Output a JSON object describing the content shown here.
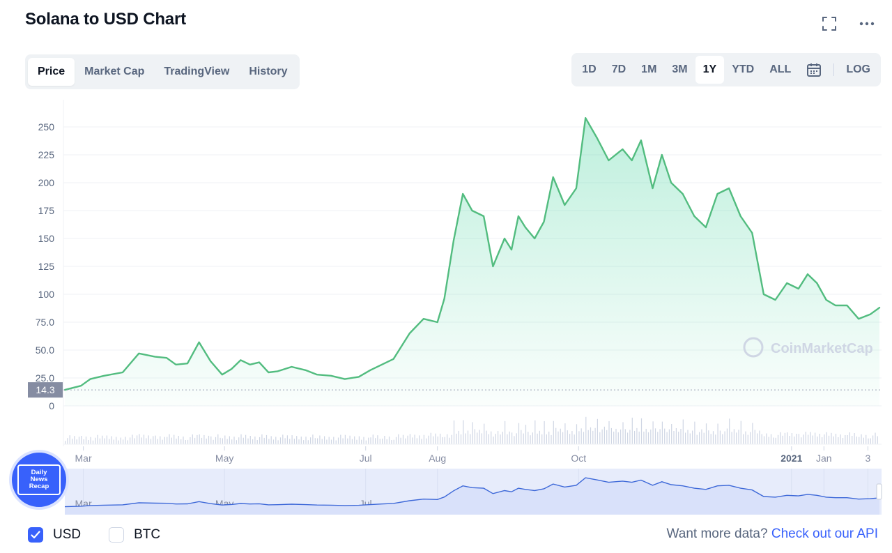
{
  "header": {
    "title": "Solana to USD Chart"
  },
  "tabs": [
    {
      "label": "Price",
      "active": true
    },
    {
      "label": "Market Cap",
      "active": false
    },
    {
      "label": "TradingView",
      "active": false
    },
    {
      "label": "History",
      "active": false
    }
  ],
  "ranges": {
    "buttons": [
      "1D",
      "7D",
      "1M",
      "3M",
      "1Y",
      "YTD",
      "ALL"
    ],
    "active": "1Y",
    "log_label": "LOG"
  },
  "colors": {
    "line": "#52bc7f",
    "fill": "#16c784",
    "volume": "#cfd6e4",
    "nav_line": "#3d68d8",
    "nav_fill": "#e7ecfb",
    "accent": "#3861fb",
    "price_tag": "#858ca2"
  },
  "watermark": "CoinMarketCap",
  "badge": {
    "lines": [
      "Daily",
      "News",
      "Recap"
    ]
  },
  "footer": {
    "currencies": [
      {
        "label": "USD",
        "checked": true
      },
      {
        "label": "BTC",
        "checked": false
      }
    ],
    "api_prefix": "Want more data? ",
    "api_link": "Check out our API"
  },
  "chart_data": {
    "type": "area",
    "title": "Solana to USD Chart",
    "ylabel": "",
    "xlabel": "",
    "ylim": [
      0,
      265
    ],
    "y_ticks": [
      0,
      25.0,
      50.0,
      75.0,
      100,
      125,
      150,
      175,
      200,
      225,
      250
    ],
    "y_tick_labels": [
      "0",
      "25.0",
      "50.0",
      "75.0",
      "100",
      "125",
      "150",
      "175",
      "200",
      "225",
      "250"
    ],
    "x_tick_labels": [
      {
        "label": "Mar",
        "date": "2021-03-01"
      },
      {
        "label": "May",
        "date": "2021-05-01"
      },
      {
        "label": "Jul",
        "date": "2021-07-01"
      },
      {
        "label": "Aug",
        "date": "2021-08-01"
      },
      {
        "label": "Oct",
        "date": "2021-10-01"
      },
      {
        "label": "2021",
        "date": "2022-01-01",
        "bold": true
      },
      {
        "label": "Jan",
        "date": "2022-01-15"
      },
      {
        "label": "3",
        "date": "2022-02-03"
      }
    ],
    "current_price_label": "14.3",
    "current_price": 14.3,
    "grid": true,
    "series": [
      {
        "x": [
          "2021-02-21",
          "2021-02-28",
          "2021-03-04",
          "2021-03-10",
          "2021-03-18",
          "2021-03-25",
          "2021-04-01",
          "2021-04-06",
          "2021-04-10",
          "2021-04-15",
          "2021-04-20",
          "2021-04-25",
          "2021-04-30",
          "2021-05-04",
          "2021-05-08",
          "2021-05-12",
          "2021-05-16",
          "2021-05-20",
          "2021-05-24",
          "2021-05-30",
          "2021-06-05",
          "2021-06-10",
          "2021-06-16",
          "2021-06-22",
          "2021-06-28",
          "2021-07-03",
          "2021-07-08",
          "2021-07-13",
          "2021-07-20",
          "2021-07-26",
          "2021-08-01",
          "2021-08-04",
          "2021-08-08",
          "2021-08-12",
          "2021-08-16",
          "2021-08-21",
          "2021-08-25",
          "2021-08-30",
          "2021-09-02",
          "2021-09-05",
          "2021-09-08",
          "2021-09-12",
          "2021-09-16",
          "2021-09-20",
          "2021-09-25",
          "2021-09-30",
          "2021-10-04",
          "2021-10-09",
          "2021-10-14",
          "2021-10-20",
          "2021-10-24",
          "2021-10-28",
          "2021-11-02",
          "2021-11-06",
          "2021-11-10",
          "2021-11-15",
          "2021-11-20",
          "2021-11-25",
          "2021-11-30",
          "2021-12-05",
          "2021-12-10",
          "2021-12-15",
          "2021-12-20",
          "2021-12-25",
          "2021-12-30",
          "2022-01-04",
          "2022-01-08",
          "2022-01-12",
          "2022-01-16",
          "2022-01-20",
          "2022-01-25",
          "2022-01-30",
          "2022-02-04",
          "2022-02-08"
        ],
        "y": [
          14.3,
          18,
          24,
          27,
          30,
          47,
          44,
          43,
          37,
          38,
          57,
          40,
          28,
          33,
          41,
          37,
          39,
          30,
          31,
          35,
          32,
          28,
          27,
          24,
          26,
          32,
          37,
          42,
          65,
          78,
          75,
          96,
          148,
          190,
          175,
          170,
          125,
          150,
          140,
          170,
          160,
          150,
          165,
          205,
          180,
          195,
          258,
          240,
          220,
          230,
          220,
          238,
          195,
          225,
          200,
          190,
          170,
          160,
          190,
          195,
          170,
          155,
          100,
          95,
          110,
          105,
          118,
          110,
          95,
          90,
          90,
          78,
          82,
          88
        ]
      }
    ]
  }
}
